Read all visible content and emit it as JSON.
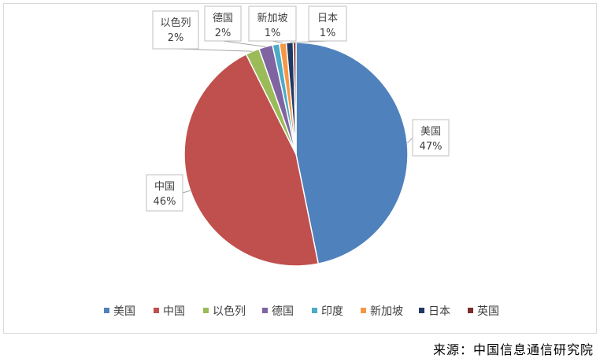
{
  "chart_data": {
    "type": "pie",
    "categories": [
      "美国",
      "中国",
      "以色列",
      "德国",
      "印度",
      "新加坡",
      "日本",
      "英国"
    ],
    "values": [
      47,
      46,
      2,
      2,
      1,
      1,
      1,
      0.4
    ],
    "labels": [
      {
        "name": "美国",
        "text": "47%"
      },
      {
        "name": "中国",
        "text": "46%"
      },
      {
        "name": "以色列",
        "text": "2%"
      },
      {
        "name": "德国",
        "text": "2%"
      },
      {
        "name": "新加坡",
        "text": "1%"
      },
      {
        "name": "日本",
        "text": "1%"
      }
    ],
    "colors": [
      "#4f81bd",
      "#c0504d",
      "#9bbb59",
      "#8064a2",
      "#4bacc6",
      "#f79646",
      "#1f3864",
      "#7b2c2c"
    ],
    "legend_position": "bottom"
  },
  "source": "来源：中国信息通信研究院"
}
